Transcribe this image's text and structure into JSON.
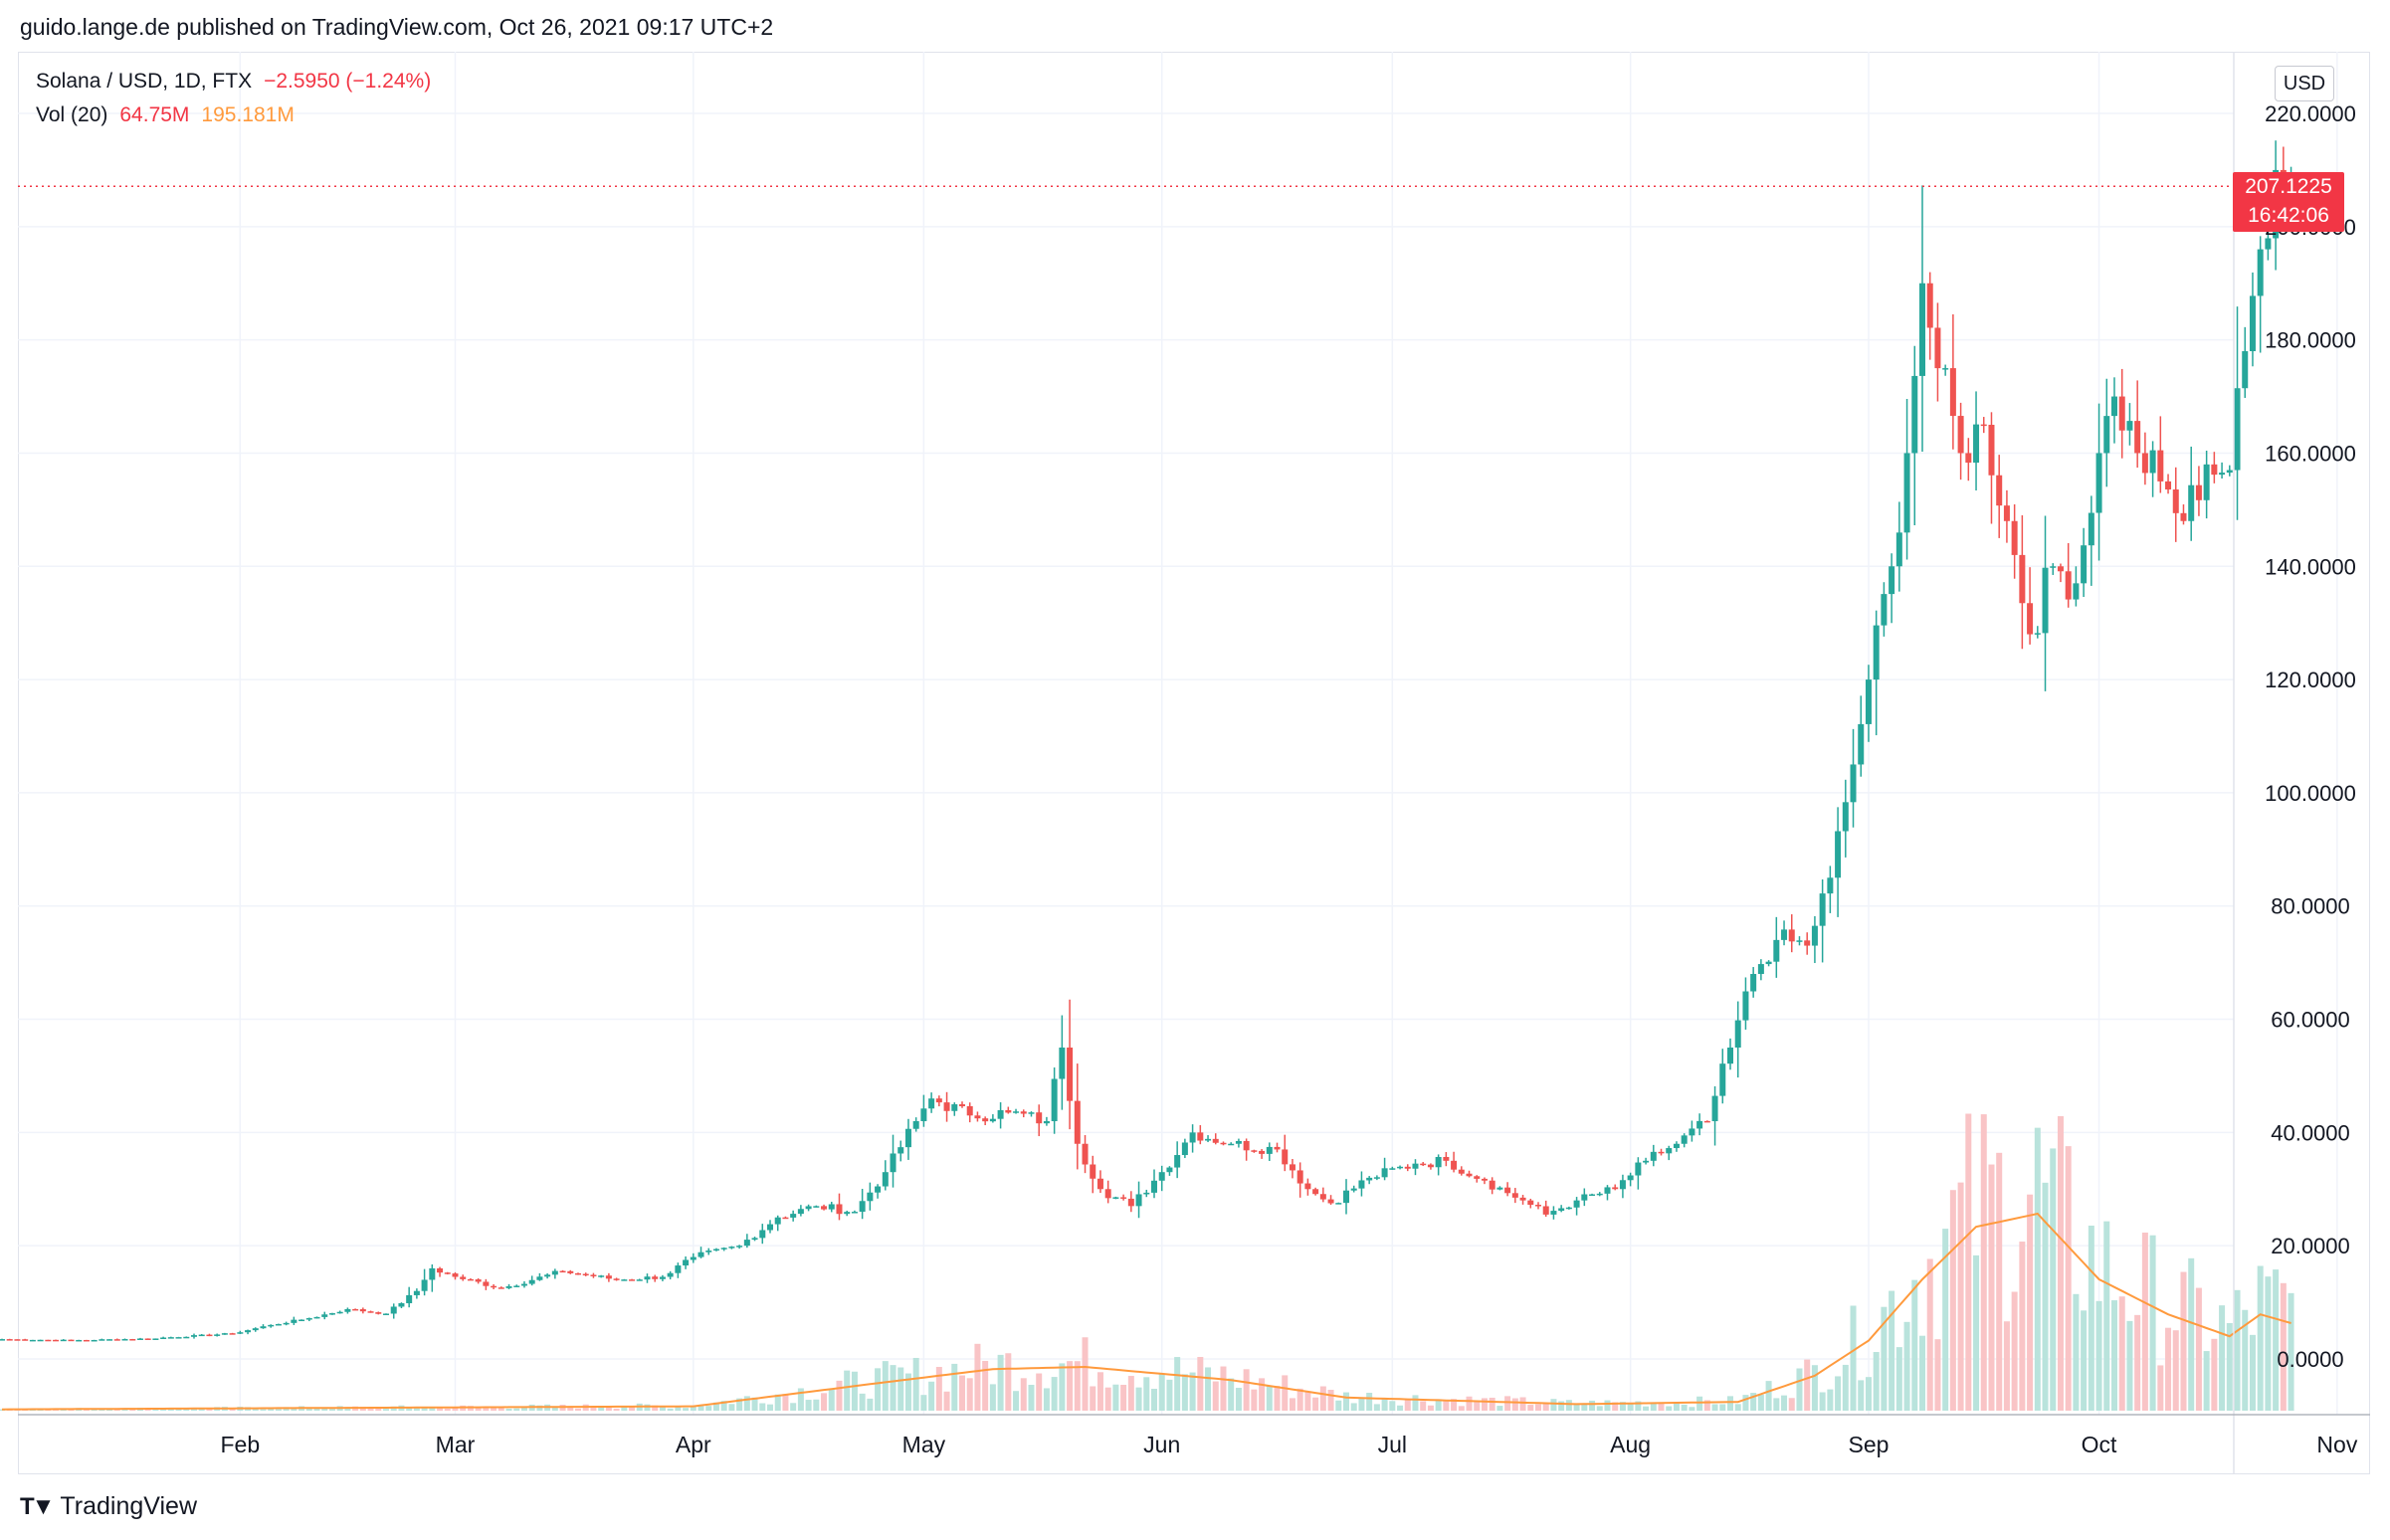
{
  "header": {
    "publisher_line": "guido.lange.de published on TradingView.com, Oct 26, 2021 09:17 UTC+2"
  },
  "legend": {
    "symbol": "Solana / USD, 1D, FTX",
    "change": "−2.5950 (−1.24%)",
    "vol_label": "Vol (20)",
    "vol_value": "64.75M",
    "vol_ma_value": "195.181M"
  },
  "axis": {
    "currency": "USD",
    "last_price": "207.1225",
    "countdown": "16:42:06"
  },
  "footer": {
    "brand": "TradingView"
  },
  "colors": {
    "up": "#26a69a",
    "down": "#ef5350",
    "vol_up": "#b9e3dc",
    "vol_down": "#f9c4c6",
    "vol_ma": "#ff9a3d",
    "last_price_line": "#f23645",
    "grid": "#f0f3fa"
  },
  "chart_data": {
    "type": "candlestick",
    "title": "",
    "start_date": "2021-01-01",
    "interval": "1D",
    "yaxis": {
      "ticks": [
        "0.0000",
        "20.0000",
        "40.0000",
        "60.0000",
        "80.0000",
        "100.0000",
        "120.0000",
        "140.0000",
        "160.0000",
        "180.0000",
        "200.0000",
        "220.0000"
      ],
      "tick_values": [
        0,
        20,
        40,
        60,
        80,
        100,
        120,
        140,
        160,
        180,
        200,
        220
      ],
      "unit": "USD"
    },
    "xaxis": {
      "ticks": [
        "Feb",
        "Mar",
        "Apr",
        "May",
        "Jun",
        "Jul",
        "Aug",
        "Sep",
        "Oct",
        "Nov"
      ],
      "tick_dates": [
        "2021-02-01",
        "2021-03-01",
        "2021-04-01",
        "2021-05-01",
        "2021-06-01",
        "2021-07-01",
        "2021-08-01",
        "2021-09-01",
        "2021-10-01",
        "2021-11-01"
      ]
    },
    "last_price": 207.1225,
    "close_series": [
      {
        "date": "2021-01-01",
        "close": 3.5
      },
      {
        "date": "2021-01-10",
        "close": 3.3
      },
      {
        "date": "2021-01-20",
        "close": 3.6
      },
      {
        "date": "2021-01-31",
        "close": 4.5
      },
      {
        "date": "2021-02-05",
        "close": 6.0
      },
      {
        "date": "2021-02-10",
        "close": 7.2
      },
      {
        "date": "2021-02-15",
        "close": 8.8
      },
      {
        "date": "2021-02-20",
        "close": 8.0
      },
      {
        "date": "2021-02-24",
        "close": 12.0
      },
      {
        "date": "2021-02-26",
        "close": 16.0
      },
      {
        "date": "2021-03-01",
        "close": 14.5
      },
      {
        "date": "2021-03-07",
        "close": 12.5
      },
      {
        "date": "2021-03-15",
        "close": 15.5
      },
      {
        "date": "2021-03-22",
        "close": 14.0
      },
      {
        "date": "2021-03-28",
        "close": 14.5
      },
      {
        "date": "2021-04-01",
        "close": 18.0
      },
      {
        "date": "2021-04-07",
        "close": 20.0
      },
      {
        "date": "2021-04-12",
        "close": 25.0
      },
      {
        "date": "2021-04-17",
        "close": 27.0
      },
      {
        "date": "2021-04-22",
        "close": 26.0
      },
      {
        "date": "2021-04-26",
        "close": 33.0
      },
      {
        "date": "2021-04-30",
        "close": 42.0
      },
      {
        "date": "2021-05-02",
        "close": 46.0
      },
      {
        "date": "2021-05-07",
        "close": 43.0
      },
      {
        "date": "2021-05-12",
        "close": 43.5
      },
      {
        "date": "2021-05-17",
        "close": 42.0
      },
      {
        "date": "2021-05-19",
        "close": 55.0
      },
      {
        "date": "2021-05-21",
        "close": 38.0
      },
      {
        "date": "2021-05-24",
        "close": 30.0
      },
      {
        "date": "2021-05-28",
        "close": 27.0
      },
      {
        "date": "2021-06-01",
        "close": 33.0
      },
      {
        "date": "2021-06-05",
        "close": 40.0
      },
      {
        "date": "2021-06-10",
        "close": 38.0
      },
      {
        "date": "2021-06-16",
        "close": 37.0
      },
      {
        "date": "2021-06-20",
        "close": 30.0
      },
      {
        "date": "2021-06-23",
        "close": 27.5
      },
      {
        "date": "2021-06-28",
        "close": 32.0
      },
      {
        "date": "2021-07-04",
        "close": 34.5
      },
      {
        "date": "2021-07-08",
        "close": 35.0
      },
      {
        "date": "2021-07-13",
        "close": 31.5
      },
      {
        "date": "2021-07-18",
        "close": 28.0
      },
      {
        "date": "2021-07-21",
        "close": 25.5
      },
      {
        "date": "2021-07-25",
        "close": 28.0
      },
      {
        "date": "2021-07-30",
        "close": 30.0
      },
      {
        "date": "2021-08-03",
        "close": 35.0
      },
      {
        "date": "2021-08-07",
        "close": 38.0
      },
      {
        "date": "2021-08-11",
        "close": 42.0
      },
      {
        "date": "2021-08-14",
        "close": 55.0
      },
      {
        "date": "2021-08-17",
        "close": 68.0
      },
      {
        "date": "2021-08-20",
        "close": 74.0
      },
      {
        "date": "2021-08-24",
        "close": 73.0
      },
      {
        "date": "2021-08-27",
        "close": 85.0
      },
      {
        "date": "2021-08-30",
        "close": 105.0
      },
      {
        "date": "2021-09-01",
        "close": 120.0
      },
      {
        "date": "2021-09-04",
        "close": 140.0
      },
      {
        "date": "2021-09-06",
        "close": 160.0
      },
      {
        "date": "2021-09-08",
        "close": 190.0
      },
      {
        "date": "2021-09-10",
        "close": 175.0
      },
      {
        "date": "2021-09-13",
        "close": 160.0
      },
      {
        "date": "2021-09-16",
        "close": 165.0
      },
      {
        "date": "2021-09-20",
        "close": 142.0
      },
      {
        "date": "2021-09-22",
        "close": 128.0
      },
      {
        "date": "2021-09-25",
        "close": 140.0
      },
      {
        "date": "2021-09-28",
        "close": 137.0
      },
      {
        "date": "2021-10-01",
        "close": 160.0
      },
      {
        "date": "2021-10-03",
        "close": 170.0
      },
      {
        "date": "2021-10-06",
        "close": 160.0
      },
      {
        "date": "2021-10-09",
        "close": 155.0
      },
      {
        "date": "2021-10-12",
        "close": 148.0
      },
      {
        "date": "2021-10-15",
        "close": 158.0
      },
      {
        "date": "2021-10-18",
        "close": 157.0
      },
      {
        "date": "2021-10-20",
        "close": 178.0
      },
      {
        "date": "2021-10-22",
        "close": 196.0
      },
      {
        "date": "2021-10-24",
        "close": 210.0
      },
      {
        "date": "2021-10-26",
        "close": 207.1225
      }
    ],
    "volume_ma_series": [
      {
        "date": "2021-01-01",
        "value": 0.3
      },
      {
        "date": "2021-04-01",
        "value": 1.0
      },
      {
        "date": "2021-04-26",
        "value": 6.5
      },
      {
        "date": "2021-05-10",
        "value": 9.5
      },
      {
        "date": "2021-05-22",
        "value": 10.0
      },
      {
        "date": "2021-06-10",
        "value": 7.0
      },
      {
        "date": "2021-06-25",
        "value": 3.0
      },
      {
        "date": "2021-07-25",
        "value": 1.5
      },
      {
        "date": "2021-08-15",
        "value": 2.0
      },
      {
        "date": "2021-08-25",
        "value": 8.0
      },
      {
        "date": "2021-09-01",
        "value": 16.0
      },
      {
        "date": "2021-09-08",
        "value": 30.0
      },
      {
        "date": "2021-09-15",
        "value": 42.0
      },
      {
        "date": "2021-09-23",
        "value": 45.0
      },
      {
        "date": "2021-10-01",
        "value": 30.0
      },
      {
        "date": "2021-10-10",
        "value": 22.0
      },
      {
        "date": "2021-10-18",
        "value": 17.0
      },
      {
        "date": "2021-10-22",
        "value": 22.0
      },
      {
        "date": "2021-10-26",
        "value": 20.0
      }
    ],
    "volume_note_units": "relative",
    "grid": true
  }
}
